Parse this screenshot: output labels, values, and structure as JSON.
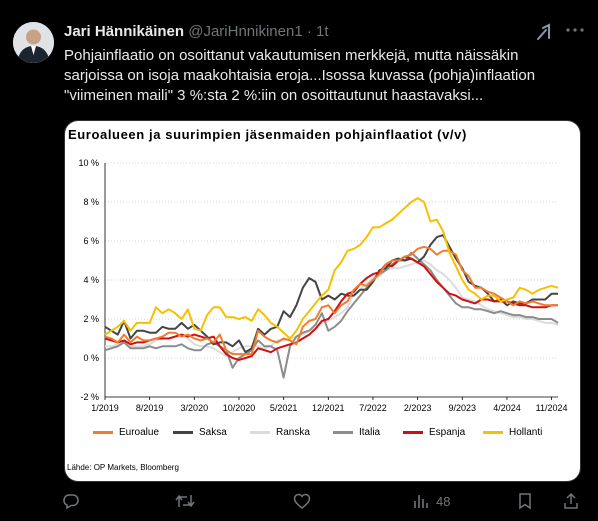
{
  "tweet": {
    "author_name": "Jari Hännikäinen",
    "author_handle": "@JariHnnikinen1",
    "separator": "·",
    "time": "1t",
    "text_lines": [
      "Pohjainflaatio on osoittanut vakautumisen merkkejä, mutta näissäkin",
      "sarjoissa on isoja maakohtaisia eroja...Isossa kuvassa (pohja)inflaation",
      "\"viimeinen maili\" 3 %:sta 2 %:iin on osoittautunut haastavaksi..."
    ]
  },
  "actions": {
    "views_count": "48"
  },
  "icons": [
    "grok-icon",
    "more-icon",
    "reply-icon",
    "retweet-icon",
    "like-icon",
    "views-icon",
    "bookmark-icon",
    "share-icon"
  ],
  "chart_data": {
    "type": "line",
    "title": "Euroalueen ja suurimpien jäsenmaiden pohjainflaatiot (v/v)",
    "source": "Lähde: OP Markets, Bloomberg",
    "ylim": [
      -2,
      10
    ],
    "yticks": [
      "10 %",
      "8 %",
      "6 %",
      "4 %",
      "2 %",
      "0 %",
      "-2 %"
    ],
    "ytick_values": [
      10,
      8,
      6,
      4,
      2,
      0,
      -2
    ],
    "xticks": [
      "1/2019",
      "8/2019",
      "3/2020",
      "10/2020",
      "5/2021",
      "12/2021",
      "7/2022",
      "2/2023",
      "9/2023",
      "4/2024",
      "11/2024"
    ],
    "xtick_months": [
      0,
      7,
      14,
      21,
      28,
      35,
      42,
      49,
      56,
      63,
      70
    ],
    "x_months_total": 72,
    "grid": true,
    "legend_position": "bottom",
    "series": [
      {
        "name": "Euroalue",
        "color": "#f07c2e",
        "values": [
          1.1,
          1.0,
          0.8,
          1.2,
          0.8,
          1.1,
          0.9,
          0.9,
          1.0,
          1.1,
          1.3,
          1.3,
          1.1,
          1.2,
          1.0,
          0.9,
          1.0,
          0.8,
          1.2,
          0.4,
          0.2,
          0.2,
          0.2,
          0.2,
          1.4,
          1.1,
          0.9,
          0.8,
          1.0,
          0.9,
          0.7,
          1.6,
          1.9,
          2.0,
          2.6,
          2.7,
          2.3,
          2.7,
          2.9,
          3.5,
          3.8,
          3.7,
          4.0,
          4.3,
          4.8,
          5.0,
          5.0,
          5.2,
          5.3,
          5.6,
          5.7,
          5.6,
          5.3,
          5.5,
          5.5,
          5.3,
          4.5,
          4.2,
          3.6,
          3.6,
          3.4,
          3.3,
          3.1,
          2.9,
          2.7,
          2.9,
          2.8,
          2.9,
          2.8,
          2.7,
          2.7,
          2.7
        ]
      },
      {
        "name": "Saksa",
        "color": "#444444",
        "values": [
          1.6,
          1.4,
          1.2,
          1.9,
          1.0,
          1.4,
          1.4,
          1.3,
          1.3,
          1.6,
          1.5,
          1.5,
          1.8,
          1.5,
          1.7,
          1.4,
          1.1,
          0.7,
          0.8,
          0.8,
          0.6,
          0.9,
          0.3,
          0.5,
          1.5,
          1.2,
          1.5,
          1.6,
          2.4,
          2.1,
          2.7,
          3.6,
          4.1,
          3.9,
          3.0,
          3.2,
          3.0,
          3.3,
          3.2,
          3.2,
          3.5,
          3.5,
          3.9,
          4.5,
          4.6,
          5.0,
          5.1,
          5.0,
          5.1,
          4.9,
          5.2,
          5.8,
          6.2,
          6.3,
          5.7,
          5.1,
          4.6,
          3.9,
          3.7,
          3.6,
          3.3,
          2.9,
          3.0,
          2.7,
          2.9,
          2.8,
          2.8,
          3.0,
          3.0,
          3.0,
          3.3,
          3.3
        ]
      },
      {
        "name": "Ranska",
        "color": "#dcdcdc",
        "values": [
          0.6,
          0.6,
          0.7,
          0.8,
          0.6,
          0.6,
          0.6,
          0.7,
          0.9,
          1.0,
          1.0,
          1.1,
          1.2,
          1.0,
          0.7,
          0.6,
          0.6,
          0.5,
          0.3,
          0.1,
          0.3,
          0.5,
          0.6,
          0.6,
          0.6,
          0.5,
          0.6,
          0.9,
          0.9,
          1.0,
          1.1,
          1.2,
          1.4,
          1.5,
          1.8,
          1.9,
          2.1,
          2.3,
          2.6,
          3.3,
          3.5,
          3.8,
          4.1,
          4.2,
          4.5,
          4.6,
          4.6,
          4.7,
          4.8,
          4.9,
          5.0,
          4.8,
          4.5,
          4.3,
          4.0,
          3.6,
          3.1,
          3.0,
          2.9,
          2.7,
          2.5,
          2.4,
          2.3,
          2.2,
          2.1,
          2.1,
          2.0,
          2.0,
          1.9,
          1.8,
          1.8,
          1.7
        ]
      },
      {
        "name": "Italia",
        "color": "#8c8c8c",
        "values": [
          0.4,
          0.5,
          0.6,
          0.8,
          0.5,
          0.5,
          0.5,
          0.6,
          0.5,
          0.6,
          0.6,
          0.6,
          0.7,
          0.5,
          0.4,
          0.4,
          0.7,
          0.8,
          0.6,
          0.4,
          -0.5,
          0.0,
          0.2,
          0.4,
          0.9,
          0.6,
          0.6,
          0.4,
          -1.0,
          0.6,
          1.1,
          1.3,
          1.4,
          1.7,
          2.3,
          1.4,
          1.6,
          1.9,
          2.4,
          2.8,
          3.2,
          3.6,
          4.0,
          4.3,
          4.5,
          4.8,
          5.0,
          5.0,
          5.4,
          5.1,
          4.8,
          4.5,
          4.0,
          3.6,
          3.2,
          2.8,
          2.6,
          2.6,
          2.5,
          2.5,
          2.4,
          2.3,
          2.4,
          2.3,
          2.2,
          2.2,
          2.1,
          2.1,
          2.0,
          2.0,
          2.0,
          1.8
        ]
      },
      {
        "name": "Espanja",
        "color": "#d01010",
        "values": [
          1.0,
          0.9,
          0.8,
          0.9,
          0.7,
          0.8,
          0.8,
          0.9,
          1.0,
          1.0,
          1.0,
          1.1,
          1.2,
          1.1,
          1.2,
          1.1,
          1.0,
          1.1,
          0.6,
          0.2,
          0.0,
          -0.1,
          0.0,
          0.1,
          0.5,
          0.4,
          0.3,
          0.5,
          0.6,
          0.7,
          0.8,
          1.0,
          1.2,
          1.5,
          1.9,
          2.0,
          2.4,
          2.9,
          3.3,
          3.4,
          3.8,
          4.1,
          4.3,
          4.4,
          4.8,
          4.7,
          5.0,
          5.2,
          5.1,
          4.9,
          4.7,
          4.3,
          3.9,
          3.6,
          3.3,
          3.2,
          3.0,
          2.9,
          2.8,
          3.0,
          3.0,
          2.9,
          2.9,
          2.9,
          2.8,
          2.7,
          2.7,
          2.6,
          2.6,
          2.6,
          2.7,
          2.7
        ]
      },
      {
        "name": "Hollanti",
        "color": "#f6c000",
        "values": [
          1.2,
          1.4,
          1.6,
          1.9,
          1.4,
          1.8,
          1.8,
          1.8,
          2.6,
          2.3,
          2.5,
          2.3,
          2.0,
          2.5,
          1.5,
          1.4,
          2.2,
          2.6,
          2.6,
          2.1,
          2.1,
          2.0,
          2.1,
          1.9,
          2.5,
          2.2,
          1.8,
          1.6,
          1.3,
          1.0,
          1.4,
          2.0,
          2.4,
          2.8,
          3.2,
          3.5,
          4.5,
          4.9,
          5.5,
          5.6,
          5.8,
          6.2,
          6.7,
          6.7,
          6.9,
          7.1,
          7.4,
          7.7,
          8.0,
          8.2,
          8.0,
          7.0,
          7.1,
          6.5,
          5.4,
          4.7,
          4.0,
          3.5,
          3.3,
          3.0,
          3.2,
          3.2,
          2.9,
          3.0,
          3.1,
          3.6,
          3.5,
          3.3,
          3.5,
          3.6,
          3.7,
          3.6
        ]
      }
    ]
  }
}
